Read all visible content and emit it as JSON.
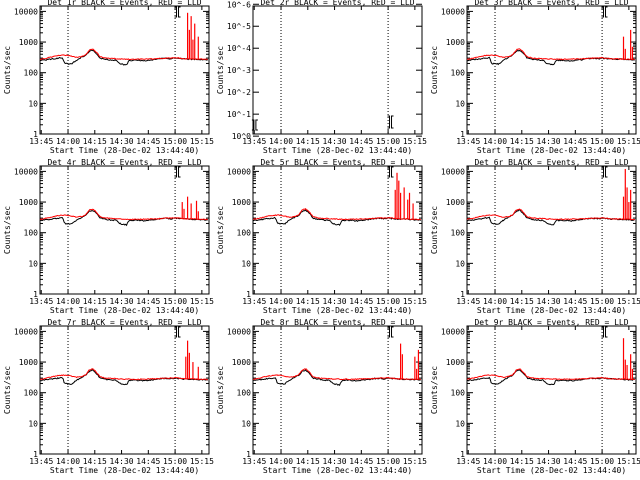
{
  "chart_data": {
    "type": "line",
    "grid_cols": 3,
    "grid_rows": 3,
    "ylabel": "Counts/sec",
    "xlabel": "Start Time (28-Dec-02 13:44:40)",
    "xlim": [
      -0.7,
      94
    ],
    "x_ticks": [
      0,
      15,
      30,
      45,
      60,
      75,
      90
    ],
    "x_tick_labels": [
      "13:45",
      "14:00",
      "14:15",
      "14:30",
      "14:45",
      "15:00",
      "15:15"
    ],
    "dotted_x": [
      15,
      75
    ],
    "x_unit_note": "x values are minutes after 13:45",
    "series_names": [
      "Events",
      "LLD"
    ],
    "series_colors": {
      "Events": "#000000",
      "LLD": "#ff0000"
    },
    "normal_ylim": [
      1,
      15000
    ],
    "normal_y_ticks": [
      1,
      10,
      100,
      1000,
      10000
    ],
    "normal_y_tick_labels": [
      "1",
      "10",
      "100",
      "1000",
      "10000"
    ],
    "det2_ylim": [
      0.8,
      1.2e-06
    ],
    "det2_y_ticks": [
      1,
      0.1,
      0.01,
      0.001,
      0.0001,
      1e-05,
      1e-06
    ],
    "det2_y_tick_labels": [
      "10^0",
      "10^-1",
      "10^-2",
      "10^-3",
      "10^-4",
      "10^-5",
      "10^-6"
    ],
    "panels": [
      {
        "title": "Det 1r BLACK = Events, RED = LLD",
        "empty": false,
        "spikes": [
          [
            82,
            9000
          ],
          [
            83,
            2500
          ],
          [
            84,
            7000
          ],
          [
            85,
            1200
          ],
          [
            86,
            4000
          ],
          [
            88,
            1500
          ]
        ]
      },
      {
        "title": "Det 2r BLACK = Events, RED = LLD",
        "empty": true,
        "spikes": []
      },
      {
        "title": "Det 3r BLACK = Events, RED = LLD",
        "empty": false,
        "spikes": [
          [
            87,
            1500
          ],
          [
            88,
            600
          ],
          [
            91,
            2500
          ],
          [
            92,
            700
          ]
        ]
      },
      {
        "title": "Det 4r BLACK = Events, RED = LLD",
        "empty": false,
        "spikes": [
          [
            79,
            1000
          ],
          [
            80,
            600
          ],
          [
            82,
            1500
          ],
          [
            84,
            900
          ],
          [
            87,
            1100
          ],
          [
            88,
            500
          ]
        ]
      },
      {
        "title": "Det 5r BLACK = Events, RED = LLD",
        "empty": false,
        "spikes": [
          [
            79,
            2500
          ],
          [
            80,
            9000
          ],
          [
            81,
            5000
          ],
          [
            82,
            2000
          ],
          [
            84,
            3000
          ],
          [
            86,
            1200
          ],
          [
            87,
            2000
          ],
          [
            89,
            900
          ]
        ]
      },
      {
        "title": "Det 6r BLACK = Events, RED = LLD",
        "empty": false,
        "spikes": [
          [
            87,
            1500
          ],
          [
            88,
            12000
          ],
          [
            89,
            3000
          ],
          [
            90,
            1000
          ],
          [
            91,
            2500
          ]
        ]
      },
      {
        "title": "Det 7r BLACK = Events, RED = LLD",
        "empty": false,
        "spikes": [
          [
            81,
            1500
          ],
          [
            82,
            5000
          ],
          [
            83,
            2000
          ],
          [
            85,
            1000
          ],
          [
            88,
            700
          ]
        ]
      },
      {
        "title": "Det 8r BLACK = Events, RED = LLD",
        "empty": false,
        "spikes": [
          [
            82,
            4000
          ],
          [
            83,
            1800
          ],
          [
            90,
            1500
          ],
          [
            91,
            600
          ],
          [
            92,
            2500
          ]
        ]
      },
      {
        "title": "Det 9r BLACK = Events, RED = LLD",
        "empty": false,
        "spikes": [
          [
            87,
            6000
          ],
          [
            88,
            1200
          ],
          [
            89,
            800
          ],
          [
            91,
            1800
          ],
          [
            92,
            600
          ]
        ]
      }
    ],
    "events_baseline": [
      [
        -0.7,
        250
      ],
      [
        3,
        265
      ],
      [
        7,
        285
      ],
      [
        10,
        300
      ],
      [
        12,
        310
      ],
      [
        13,
        200
      ],
      [
        15,
        195
      ],
      [
        17,
        190
      ],
      [
        19,
        240
      ],
      [
        23,
        330
      ],
      [
        25,
        370
      ],
      [
        27,
        510
      ],
      [
        29,
        540
      ],
      [
        31,
        420
      ],
      [
        33,
        300
      ],
      [
        35,
        280
      ],
      [
        38,
        265
      ],
      [
        40,
        255
      ],
      [
        42,
        258
      ],
      [
        44,
        200
      ],
      [
        46,
        185
      ],
      [
        48,
        180
      ],
      [
        49,
        250
      ],
      [
        52,
        255
      ],
      [
        55,
        250
      ],
      [
        58,
        245
      ],
      [
        60,
        255
      ],
      [
        63,
        265
      ],
      [
        65,
        275
      ],
      [
        67,
        290
      ],
      [
        70,
        295
      ],
      [
        73,
        285
      ],
      [
        75,
        300
      ],
      [
        76,
        295
      ],
      [
        80,
        280
      ],
      [
        85,
        275
      ],
      [
        90,
        265
      ],
      [
        93.5,
        260
      ]
    ],
    "lld_baseline": [
      [
        -0.7,
        270
      ],
      [
        3,
        300
      ],
      [
        7,
        340
      ],
      [
        10,
        365
      ],
      [
        13,
        375
      ],
      [
        15,
        370
      ],
      [
        17,
        345
      ],
      [
        20,
        320
      ],
      [
        23,
        340
      ],
      [
        25,
        390
      ],
      [
        27,
        560
      ],
      [
        29,
        600
      ],
      [
        31,
        460
      ],
      [
        33,
        330
      ],
      [
        36,
        300
      ],
      [
        40,
        290
      ],
      [
        45,
        280
      ],
      [
        50,
        275
      ],
      [
        55,
        275
      ],
      [
        60,
        280
      ],
      [
        65,
        285
      ],
      [
        70,
        300
      ],
      [
        73,
        300
      ],
      [
        75,
        310
      ],
      [
        76,
        305
      ],
      [
        80,
        285
      ],
      [
        85,
        280
      ],
      [
        90,
        275
      ],
      [
        93.5,
        270
      ]
    ]
  }
}
